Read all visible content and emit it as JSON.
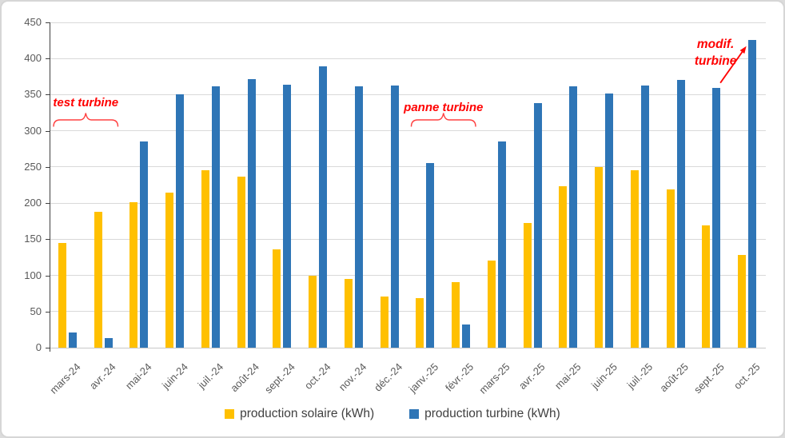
{
  "chart_data": {
    "type": "bar",
    "title": "",
    "categories": [
      "mars-24",
      "avr.-24",
      "mai-24",
      "juin-24",
      "juil.-24",
      "août-24",
      "sept.-24",
      "oct.-24",
      "nov.-24",
      "déc.-24",
      "janv.-25",
      "févr.-25",
      "mars-25",
      "avr.-25",
      "mai-25",
      "juin-25",
      "juil.-25",
      "août-25",
      "sept.-25",
      "oct.-25"
    ],
    "series": [
      {
        "name": "production solaire (kWh)",
        "color": "#FFC000",
        "values": [
          145,
          188,
          201,
          214,
          246,
          237,
          136,
          100,
          95,
          71,
          69,
          91,
          121,
          172,
          223,
          250,
          246,
          219,
          169,
          128
        ]
      },
      {
        "name": "production turbine (kWh)",
        "color": "#2E75B6",
        "values": [
          21,
          13,
          285,
          350,
          361,
          371,
          364,
          389,
          362,
          363,
          255,
          32,
          285,
          338,
          362,
          352,
          363,
          370,
          359,
          426
        ]
      }
    ],
    "xlabel": "",
    "ylabel": "",
    "ylim": [
      0,
      450
    ],
    "ytick_step": 50,
    "y_tick_labels": [
      "0",
      "50",
      "100",
      "150",
      "200",
      "250",
      "300",
      "350",
      "400",
      "450"
    ],
    "grid": true,
    "legend_position": "bottom"
  },
  "annotations": [
    {
      "type": "brace",
      "text": "test turbine",
      "from": "mars-24",
      "to": "avr.-24",
      "color": "#FF0000"
    },
    {
      "type": "brace",
      "text": "panne turbine",
      "from": "janv.-25",
      "to": "févr.-25",
      "color": "#FF0000"
    },
    {
      "type": "arrow",
      "lines": [
        "modif.",
        "turbine"
      ],
      "target": "oct.-25",
      "target_series": "production turbine (kWh)",
      "color": "#FF0000"
    }
  ],
  "colors": {
    "solar_bar": "#FFC000",
    "turbine_bar": "#2E75B6",
    "annotation_red": "#FF0000",
    "gridline": "#D9D9D9",
    "axis_line": "#404040",
    "tick_label": "#595959",
    "legend_text": "#404040",
    "chart_border": "#D6D6D6",
    "background": "#FFFFFF"
  }
}
